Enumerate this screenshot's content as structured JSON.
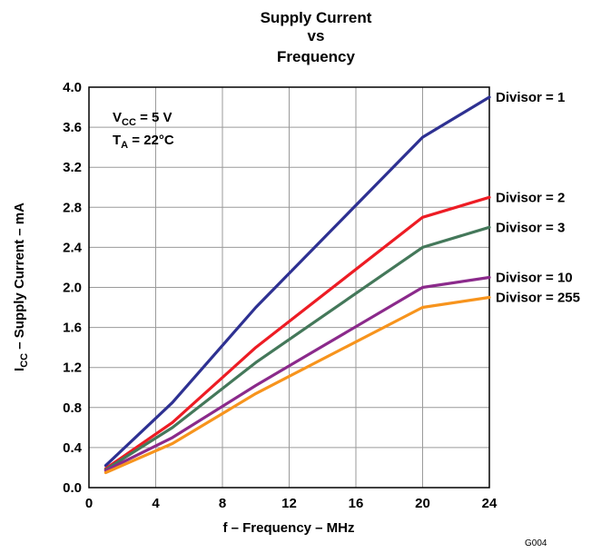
{
  "chart_data": {
    "type": "line",
    "title_lines": [
      "Supply Current",
      "vs",
      "Frequency"
    ],
    "xlabel": "f – Frequency – MHz",
    "ylabel": {
      "main": "I",
      "sub": "CC",
      "rest": " – Supply Current – mA"
    },
    "xlim": [
      0,
      24
    ],
    "ylim": [
      0,
      4.0
    ],
    "x_ticks": [
      0,
      4,
      8,
      12,
      16,
      20,
      24
    ],
    "x_tick_labels": [
      "0",
      "4",
      "8",
      "12",
      "16",
      "20",
      "24"
    ],
    "y_ticks": [
      0,
      0.4,
      0.8,
      1.2,
      1.6,
      2.0,
      2.4,
      2.8,
      3.2,
      3.6,
      4.0
    ],
    "y_tick_labels": [
      "0.0",
      "0.4",
      "0.8",
      "1.2",
      "1.6",
      "2.0",
      "2.4",
      "2.8",
      "3.2",
      "3.6",
      "4.0"
    ],
    "grid": true,
    "annotation": {
      "line1": {
        "main": "V",
        "sub": "CC",
        "rest": " = 5 V"
      },
      "line2": {
        "main": "T",
        "sub": "A",
        "rest": " = 22°C"
      }
    },
    "figure_id": "G004",
    "series": [
      {
        "name": "Divisor = 1",
        "color": "#2e3192",
        "x": [
          1,
          5,
          10,
          20,
          24
        ],
        "y": [
          0.22,
          0.85,
          1.8,
          3.5,
          3.9
        ]
      },
      {
        "name": "Divisor = 2",
        "color": "#ed1c24",
        "x": [
          1,
          5,
          10,
          20,
          24
        ],
        "y": [
          0.19,
          0.65,
          1.4,
          2.7,
          2.9
        ]
      },
      {
        "name": "Divisor = 3",
        "color": "#44785a",
        "x": [
          1,
          5,
          10,
          20,
          24
        ],
        "y": [
          0.18,
          0.6,
          1.25,
          2.4,
          2.6
        ]
      },
      {
        "name": "Divisor = 10",
        "color": "#8b2a8b",
        "x": [
          1,
          5,
          10,
          20,
          24
        ],
        "y": [
          0.17,
          0.5,
          1.02,
          2.0,
          2.1
        ]
      },
      {
        "name": "Divisor = 255",
        "color": "#f7941d",
        "x": [
          1,
          5,
          10,
          20,
          24
        ],
        "y": [
          0.15,
          0.44,
          0.94,
          1.8,
          1.9
        ]
      }
    ]
  }
}
